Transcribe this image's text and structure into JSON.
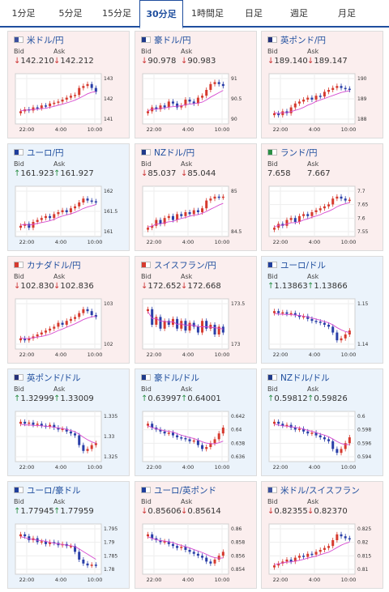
{
  "tabs": [
    {
      "label": "1分足",
      "active": false
    },
    {
      "label": "5分足",
      "active": false
    },
    {
      "label": "15分足",
      "active": false
    },
    {
      "label": "30分足",
      "active": true
    },
    {
      "label": "1時間足",
      "active": false
    },
    {
      "label": "日足",
      "active": false
    },
    {
      "label": "週足",
      "active": false
    },
    {
      "label": "月足",
      "active": false
    }
  ],
  "labels": {
    "bid": "Bid",
    "ask": "Ask"
  },
  "colors": {
    "up_candle": "#2a3fa8",
    "down_candle": "#d63a2e",
    "ma_line": "#d64ad0",
    "accent": "#1f4e9e"
  },
  "x_ticks": [
    "22:00",
    "4:00",
    "10:00"
  ],
  "cards": [
    {
      "pair": "米ドル/円",
      "flag": "us-jp-flag-icon",
      "tone": "red",
      "bid": "142.210",
      "ask": "142.212",
      "dir": "down",
      "y_ticks": [
        "143",
        "142",
        "141"
      ]
    },
    {
      "pair": "豪ドル/円",
      "flag": "au-jp-flag-icon",
      "tone": "red",
      "bid": "90.978",
      "ask": "90.983",
      "dir": "down",
      "y_ticks": [
        "91",
        "90.5",
        "90"
      ]
    },
    {
      "pair": "英ポンド/円",
      "flag": "gb-jp-flag-icon",
      "tone": "red",
      "bid": "189.140",
      "ask": "189.147",
      "dir": "down",
      "y_ticks": [
        "190",
        "189",
        "188"
      ]
    },
    {
      "pair": "ユーロ/円",
      "flag": "eu-jp-flag-icon",
      "tone": "blue",
      "bid": "161.923",
      "ask": "161.927",
      "dir": "up",
      "y_ticks": [
        "162",
        "161.5",
        "161"
      ]
    },
    {
      "pair": "NZドル/円",
      "flag": "nz-jp-flag-icon",
      "tone": "red",
      "bid": "85.037",
      "ask": "85.044",
      "dir": "down",
      "y_ticks": [
        "85",
        "84.5"
      ]
    },
    {
      "pair": "ランド/円",
      "flag": "za-jp-flag-icon",
      "tone": "red",
      "bid": "7.658",
      "ask": "7.667",
      "dir": "none",
      "y_ticks": [
        "7.7",
        "7.65",
        "7.6",
        "7.55"
      ]
    },
    {
      "pair": "カナダドル/円",
      "flag": "ca-jp-flag-icon",
      "tone": "red",
      "bid": "102.830",
      "ask": "102.836",
      "dir": "down",
      "y_ticks": [
        "103",
        "102"
      ]
    },
    {
      "pair": "スイスフラン/円",
      "flag": "ch-jp-flag-icon",
      "tone": "red",
      "bid": "172.652",
      "ask": "172.668",
      "dir": "down",
      "y_ticks": [
        "173.5",
        "173"
      ]
    },
    {
      "pair": "ユーロ/ドル",
      "flag": "eu-us-flag-icon",
      "tone": "blue",
      "bid": "1.13863",
      "ask": "1.13866",
      "dir": "up",
      "y_ticks": [
        "1.15",
        "1.14"
      ]
    },
    {
      "pair": "英ポンド/ドル",
      "flag": "gb-us-flag-icon",
      "tone": "blue",
      "bid": "1.32999",
      "ask": "1.33009",
      "dir": "up",
      "y_ticks": [
        "1.335",
        "1.33",
        "1.325"
      ]
    },
    {
      "pair": "豪ドル/ドル",
      "flag": "au-us-flag-icon",
      "tone": "blue",
      "bid": "0.63997",
      "ask": "0.64001",
      "dir": "up",
      "y_ticks": [
        "0.642",
        "0.64",
        "0.638",
        "0.636"
      ]
    },
    {
      "pair": "NZドル/ドル",
      "flag": "nz-us-flag-icon",
      "tone": "blue",
      "bid": "0.59812",
      "ask": "0.59826",
      "dir": "up",
      "y_ticks": [
        "0.6",
        "0.598",
        "0.596",
        "0.594"
      ]
    },
    {
      "pair": "ユーロ/豪ドル",
      "flag": "eu-au-flag-icon",
      "tone": "blue",
      "bid": "1.77945",
      "ask": "1.77959",
      "dir": "up",
      "y_ticks": [
        "1.795",
        "1.79",
        "1.785",
        "1.78"
      ]
    },
    {
      "pair": "ユーロ/英ポンド",
      "flag": "eu-gb-flag-icon",
      "tone": "red",
      "bid": "0.85606",
      "ask": "0.85614",
      "dir": "down",
      "y_ticks": [
        "0.86",
        "0.858",
        "0.856",
        "0.854"
      ]
    },
    {
      "pair": "米ドル/スイスフラン",
      "flag": "us-ch-flag-icon",
      "tone": "red",
      "bid": "0.82355",
      "ask": "0.82370",
      "dir": "down",
      "y_ticks": [
        "0.825",
        "0.82",
        "0.815",
        "0.81"
      ]
    }
  ]
}
